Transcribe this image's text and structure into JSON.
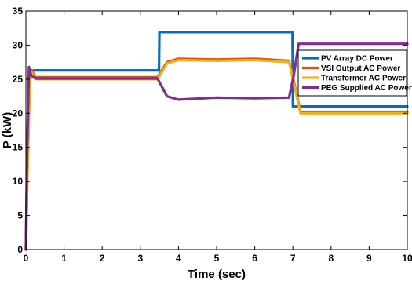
{
  "chart_data": {
    "type": "line",
    "xlabel": "Time (sec)",
    "ylabel": "P (kW)",
    "xlim": [
      0,
      10
    ],
    "ylim": [
      0,
      35
    ],
    "xticks": [
      0,
      1,
      2,
      3,
      4,
      5,
      6,
      7,
      8,
      9,
      10
    ],
    "yticks": [
      0,
      5,
      10,
      15,
      20,
      25,
      30,
      35
    ],
    "grid": false,
    "legend_position": "top-right",
    "series": [
      {
        "name": "PV Array DC Power",
        "color": "#0072BD",
        "x": [
          0,
          0.02,
          0.08,
          0.15,
          0.2,
          3.49,
          3.5,
          6.99,
          7.0,
          10
        ],
        "y": [
          0,
          8,
          24,
          26.2,
          26.3,
          26.3,
          31.9,
          31.9,
          21.0,
          21.0
        ]
      },
      {
        "name": "VSI Output AC Power",
        "color": "#D95319",
        "x": [
          0,
          0.04,
          0.1,
          0.15,
          0.25,
          3.45,
          3.7,
          4.0,
          5.0,
          6.0,
          6.9,
          7.02,
          7.2,
          10
        ],
        "y": [
          0,
          11,
          24.5,
          26.3,
          25.3,
          25.3,
          27.5,
          28.0,
          27.9,
          28.0,
          27.7,
          24.8,
          20.2,
          20.2
        ]
      },
      {
        "name": "Transformer AC Power",
        "color": "#EDB120",
        "x": [
          0,
          0.04,
          0.1,
          0.15,
          0.25,
          3.45,
          3.7,
          4.0,
          5.0,
          6.0,
          6.9,
          7.02,
          7.2,
          10
        ],
        "y": [
          0,
          11,
          24.3,
          26.0,
          25.0,
          25.0,
          27.3,
          27.8,
          27.7,
          27.8,
          27.5,
          24.5,
          20.0,
          20.0
        ]
      },
      {
        "name": "PEG Supplied AC Power",
        "color": "#7E2F8E",
        "x": [
          0,
          0.03,
          0.08,
          0.14,
          0.25,
          3.45,
          3.7,
          4.0,
          5.0,
          6.0,
          6.9,
          7.02,
          7.15,
          10
        ],
        "y": [
          0,
          14,
          26.8,
          25.5,
          25.1,
          25.1,
          22.5,
          22.0,
          22.3,
          22.2,
          22.3,
          25.5,
          30.2,
          30.2
        ]
      }
    ]
  }
}
